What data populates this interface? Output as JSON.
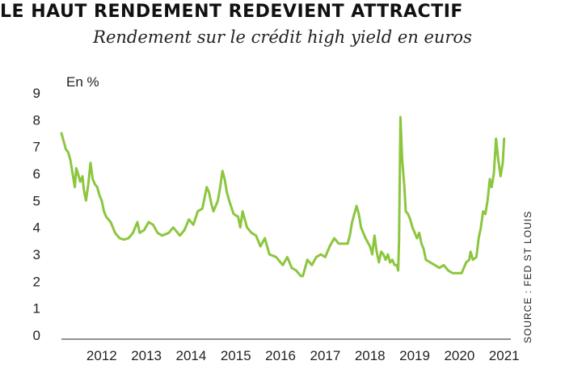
{
  "title": "LE HAUT RENDEMENT REDEVIENT ATTRACTIF",
  "subtitle": "Rendement sur le crédit high yield en euros",
  "source": "SOURCE : FED ST LOUIS",
  "chart_data": {
    "type": "line",
    "title": "LE HAUT RENDEMENT REDEVIENT ATTRACTIF",
    "subtitle": "Rendement sur le crédit high yield en euros",
    "ylabel": "En %",
    "xlabel": "",
    "ylim": [
      0,
      9
    ],
    "xlim": [
      2011.6,
      2021.65
    ],
    "y_ticks": [
      "0",
      "1",
      "2",
      "3",
      "4",
      "5",
      "6",
      "7",
      "8",
      "9"
    ],
    "x_ticks": [
      "2012",
      "2013",
      "2014",
      "2015",
      "2016",
      "2017",
      "2018",
      "2019",
      "2020",
      "2021"
    ],
    "grid": false,
    "color": "#8cc63f",
    "series": [
      {
        "name": "",
        "points": [
          [
            2011.6,
            7.5
          ],
          [
            2011.65,
            7.2
          ],
          [
            2011.7,
            6.9
          ],
          [
            2011.75,
            6.8
          ],
          [
            2011.8,
            6.5
          ],
          [
            2011.85,
            6.0
          ],
          [
            2011.9,
            5.5
          ],
          [
            2011.93,
            6.2
          ],
          [
            2011.97,
            6.0
          ],
          [
            2012.02,
            5.7
          ],
          [
            2012.07,
            5.9
          ],
          [
            2012.1,
            5.4
          ],
          [
            2012.15,
            5.0
          ],
          [
            2012.2,
            5.6
          ],
          [
            2012.25,
            6.4
          ],
          [
            2012.3,
            5.8
          ],
          [
            2012.35,
            5.6
          ],
          [
            2012.4,
            5.5
          ],
          [
            2012.45,
            5.2
          ],
          [
            2012.5,
            5.0
          ],
          [
            2012.55,
            4.6
          ],
          [
            2012.6,
            4.4
          ],
          [
            2012.7,
            4.2
          ],
          [
            2012.8,
            3.8
          ],
          [
            2012.9,
            3.6
          ],
          [
            2013.0,
            3.55
          ],
          [
            2013.1,
            3.6
          ],
          [
            2013.2,
            3.8
          ],
          [
            2013.3,
            4.2
          ],
          [
            2013.35,
            3.8
          ],
          [
            2013.45,
            3.9
          ],
          [
            2013.55,
            4.2
          ],
          [
            2013.65,
            4.1
          ],
          [
            2013.75,
            3.8
          ],
          [
            2013.85,
            3.7
          ],
          [
            2014.0,
            3.8
          ],
          [
            2014.1,
            4.0
          ],
          [
            2014.25,
            3.7
          ],
          [
            2014.35,
            3.9
          ],
          [
            2014.45,
            4.3
          ],
          [
            2014.55,
            4.1
          ],
          [
            2014.65,
            4.6
          ],
          [
            2014.75,
            4.7
          ],
          [
            2014.85,
            5.5
          ],
          [
            2014.9,
            5.3
          ],
          [
            2014.95,
            4.9
          ],
          [
            2015.0,
            4.6
          ],
          [
            2015.1,
            5.0
          ],
          [
            2015.15,
            5.5
          ],
          [
            2015.2,
            6.1
          ],
          [
            2015.25,
            5.8
          ],
          [
            2015.3,
            5.3
          ],
          [
            2015.35,
            5.0
          ],
          [
            2015.45,
            4.5
          ],
          [
            2015.55,
            4.4
          ],
          [
            2015.6,
            4.0
          ],
          [
            2015.65,
            4.6
          ],
          [
            2015.75,
            4.0
          ],
          [
            2015.85,
            3.8
          ],
          [
            2015.95,
            3.7
          ],
          [
            2016.05,
            3.3
          ],
          [
            2016.15,
            3.6
          ],
          [
            2016.25,
            3.0
          ],
          [
            2016.4,
            2.9
          ],
          [
            2016.55,
            2.6
          ],
          [
            2016.65,
            2.9
          ],
          [
            2016.75,
            2.5
          ],
          [
            2016.85,
            2.4
          ],
          [
            2016.95,
            2.2
          ],
          [
            2017.0,
            2.2
          ],
          [
            2017.1,
            2.8
          ],
          [
            2017.2,
            2.6
          ],
          [
            2017.3,
            2.9
          ],
          [
            2017.4,
            3.0
          ],
          [
            2017.5,
            2.9
          ],
          [
            2017.6,
            3.3
          ],
          [
            2017.7,
            3.6
          ],
          [
            2017.8,
            3.4
          ],
          [
            2017.9,
            3.4
          ],
          [
            2018.0,
            3.4
          ],
          [
            2018.05,
            3.7
          ],
          [
            2018.1,
            4.2
          ],
          [
            2018.15,
            4.5
          ],
          [
            2018.2,
            4.8
          ],
          [
            2018.25,
            4.5
          ],
          [
            2018.3,
            4.0
          ],
          [
            2018.4,
            3.6
          ],
          [
            2018.5,
            3.3
          ],
          [
            2018.55,
            3.0
          ],
          [
            2018.6,
            3.7
          ],
          [
            2018.65,
            3.1
          ],
          [
            2018.7,
            2.7
          ],
          [
            2018.75,
            3.1
          ],
          [
            2018.8,
            3.0
          ],
          [
            2018.85,
            2.8
          ],
          [
            2018.9,
            3.0
          ],
          [
            2018.95,
            2.7
          ],
          [
            2019.0,
            2.8
          ],
          [
            2019.05,
            2.6
          ],
          [
            2019.1,
            2.6
          ],
          [
            2019.13,
            2.4
          ],
          [
            2019.15,
            3.5
          ],
          [
            2019.18,
            8.1
          ],
          [
            2019.22,
            6.5
          ],
          [
            2019.27,
            5.5
          ],
          [
            2019.3,
            4.6
          ],
          [
            2019.35,
            4.5
          ],
          [
            2019.4,
            4.3
          ],
          [
            2019.45,
            4.0
          ],
          [
            2019.5,
            3.8
          ],
          [
            2019.55,
            3.6
          ],
          [
            2019.6,
            3.8
          ],
          [
            2019.65,
            3.4
          ],
          [
            2019.7,
            3.2
          ],
          [
            2019.75,
            2.8
          ],
          [
            2019.85,
            2.7
          ],
          [
            2019.95,
            2.6
          ],
          [
            2020.05,
            2.5
          ],
          [
            2020.15,
            2.6
          ],
          [
            2020.25,
            2.4
          ],
          [
            2020.35,
            2.3
          ],
          [
            2020.45,
            2.3
          ],
          [
            2020.55,
            2.3
          ],
          [
            2020.65,
            2.7
          ],
          [
            2020.72,
            2.8
          ],
          [
            2020.75,
            3.1
          ],
          [
            2020.8,
            2.8
          ],
          [
            2020.88,
            2.9
          ],
          [
            2020.93,
            3.6
          ],
          [
            2020.98,
            4.0
          ],
          [
            2021.03,
            4.6
          ],
          [
            2021.08,
            4.5
          ],
          [
            2021.13,
            5.0
          ],
          [
            2021.18,
            5.8
          ],
          [
            2021.22,
            5.5
          ],
          [
            2021.27,
            6.0
          ],
          [
            2021.32,
            7.3
          ],
          [
            2021.37,
            6.5
          ],
          [
            2021.42,
            5.9
          ],
          [
            2021.47,
            6.4
          ],
          [
            2021.5,
            7.3
          ]
        ]
      }
    ]
  }
}
